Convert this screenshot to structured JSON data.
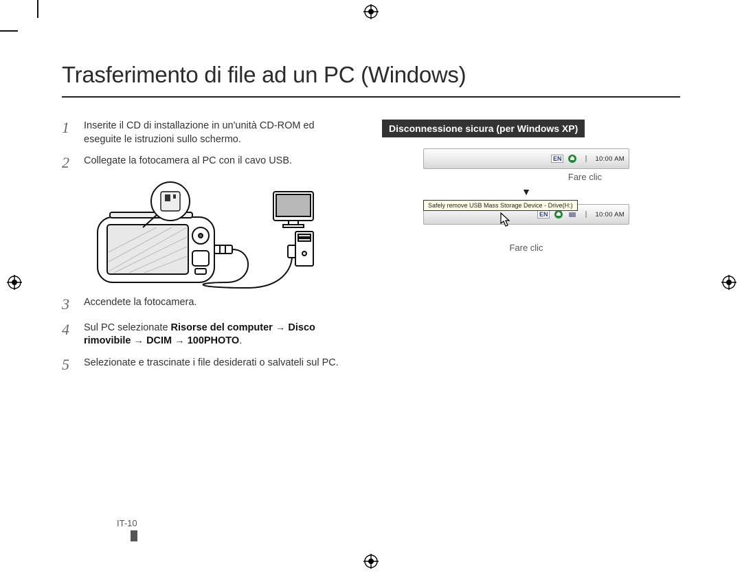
{
  "title": "Trasferimento di file ad un PC (Windows)",
  "steps": [
    {
      "n": "1",
      "text": "Inserite il CD di installazione in un'unità CD-ROM ed eseguite le istruzioni sullo schermo."
    },
    {
      "n": "2",
      "text": "Collegate la fotocamera al PC con il cavo USB."
    },
    {
      "n": "3",
      "text": "Accendete la fotocamera."
    },
    {
      "n": "4",
      "text_html": "Sul PC selezionate <b>Risorse del computer</b> → <b>Disco rimovibile</b> → <b>DCIM</b> → <b>100PHOTO</b>."
    },
    {
      "n": "5",
      "text": "Selezionate e trascinate i file desiderati o salvateli sul PC."
    }
  ],
  "callout": {
    "header": "Disconnessione sicura (per Windows XP)",
    "click_label": "Fare clic",
    "tray": {
      "lang": "EN",
      "time": "10:00 AM"
    },
    "tooltip": "Safely remove USB Mass Storage Device - Drive(H:)",
    "arrow": "▼"
  },
  "page_number": "IT-10",
  "colors": {
    "text": "#333333",
    "heading": "#2b2b2b",
    "rule": "#222222",
    "callout_bg": "#333333",
    "tooltip_bg": "#fffde6",
    "tray_grad_top": "#fdfdfd",
    "tray_grad_bot": "#d8d8d8"
  }
}
